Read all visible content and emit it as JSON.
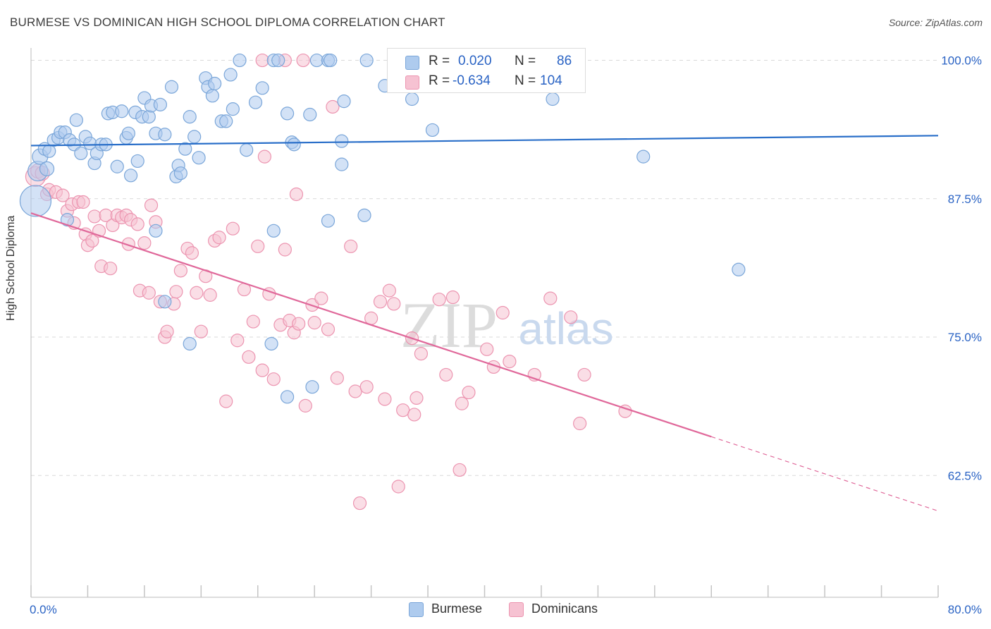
{
  "header": {
    "title": "BURMESE VS DOMINICAN HIGH SCHOOL DIPLOMA CORRELATION CHART",
    "source": "Source: ZipAtlas.com"
  },
  "watermark": {
    "zip": "ZIP",
    "atlas": "atlas"
  },
  "legend": {
    "rows": [
      {
        "r_label": "R =",
        "r_value": "0.020",
        "n_label": "N =",
        "n_value": "86"
      },
      {
        "r_label": "R =",
        "r_value": "-0.634",
        "n_label": "N =",
        "n_value": "104"
      }
    ]
  },
  "bottom_legend": {
    "burmese": "Burmese",
    "dominicans": "Dominicans"
  },
  "colors": {
    "burmese_fill": "#aecbee",
    "burmese_stroke": "#7aa6d9",
    "burmese_line": "#2a6fc9",
    "dominican_fill": "#f6c2d2",
    "dominican_stroke": "#ec94b0",
    "dominican_line": "#e0689a",
    "value_text": "#2a63c4",
    "grid": "#d8d8d8"
  },
  "chart_data": {
    "type": "scatter",
    "ylabel": "High School Diploma",
    "xlabel": "",
    "xlim": [
      0,
      80
    ],
    "ylim": [
      51.5,
      101.5
    ],
    "x_tick_labels": [
      "0.0%",
      "80.0%"
    ],
    "y_ticks": [
      62.5,
      75.0,
      87.5,
      100.0
    ],
    "y_tick_labels": [
      "62.5%",
      "75.0%",
      "87.5%",
      "100.0%"
    ],
    "series": [
      {
        "name": "Burmese",
        "trend": {
          "x": [
            0,
            80
          ],
          "y": [
            92.3,
            93.2
          ],
          "extrapolated_to": null
        },
        "points": [
          [
            0.4,
            87.3,
            22
          ],
          [
            0.6,
            90.0,
            14
          ],
          [
            0.8,
            91.3,
            11
          ],
          [
            1.2,
            92.0,
            9
          ],
          [
            1.4,
            90.2,
            10
          ],
          [
            1.6,
            91.8,
            9
          ],
          [
            2.0,
            92.8,
            9
          ],
          [
            2.4,
            93.0,
            9
          ],
          [
            2.6,
            93.5,
            9
          ],
          [
            3.0,
            93.5,
            9
          ],
          [
            3.4,
            92.8,
            9
          ],
          [
            3.8,
            92.4,
            9
          ],
          [
            4.0,
            94.6,
            9
          ],
          [
            4.4,
            91.6,
            9
          ],
          [
            4.8,
            93.1,
            9
          ],
          [
            5.2,
            92.5,
            9
          ],
          [
            5.6,
            90.7,
            9
          ],
          [
            5.8,
            91.6,
            9
          ],
          [
            6.2,
            92.4,
            9
          ],
          [
            6.6,
            92.4,
            9
          ],
          [
            6.8,
            95.2,
            9
          ],
          [
            7.2,
            95.3,
            9
          ],
          [
            7.6,
            90.4,
            9
          ],
          [
            8.0,
            95.4,
            9
          ],
          [
            8.4,
            93.0,
            9
          ],
          [
            8.6,
            93.4,
            9
          ],
          [
            8.8,
            89.6,
            9
          ],
          [
            9.2,
            95.3,
            9
          ],
          [
            9.4,
            90.9,
            9
          ],
          [
            9.8,
            94.9,
            9
          ],
          [
            10.0,
            96.6,
            9
          ],
          [
            10.4,
            94.9,
            9
          ],
          [
            10.6,
            95.9,
            9
          ],
          [
            11.0,
            93.4,
            9
          ],
          [
            11.4,
            96.0,
            9
          ],
          [
            11.8,
            93.3,
            9
          ],
          [
            12.4,
            97.6,
            9
          ],
          [
            12.8,
            89.5,
            9
          ],
          [
            13.0,
            90.5,
            9
          ],
          [
            13.2,
            89.8,
            9
          ],
          [
            13.6,
            92.0,
            9
          ],
          [
            14.0,
            94.9,
            9
          ],
          [
            14.4,
            93.1,
            9
          ],
          [
            14.8,
            91.2,
            9
          ],
          [
            15.4,
            98.4,
            9
          ],
          [
            15.6,
            97.6,
            9
          ],
          [
            16.0,
            96.8,
            9
          ],
          [
            16.2,
            97.9,
            9
          ],
          [
            16.8,
            94.5,
            9
          ],
          [
            17.2,
            94.5,
            9
          ],
          [
            17.6,
            98.7,
            9
          ],
          [
            17.8,
            95.6,
            9
          ],
          [
            18.4,
            100.0,
            9
          ],
          [
            19.0,
            91.9,
            9
          ],
          [
            19.8,
            96.2,
            9
          ],
          [
            20.4,
            97.5,
            9
          ],
          [
            21.4,
            100.0,
            9
          ],
          [
            21.8,
            100.0,
            9
          ],
          [
            22.6,
            95.2,
            9
          ],
          [
            23.0,
            92.6,
            9
          ],
          [
            23.2,
            92.4,
            9
          ],
          [
            24.6,
            95.1,
            9
          ],
          [
            25.2,
            100.0,
            9
          ],
          [
            26.2,
            100.0,
            9
          ],
          [
            26.4,
            100.0,
            9
          ],
          [
            27.4,
            92.7,
            9
          ],
          [
            27.4,
            90.6,
            9
          ],
          [
            27.6,
            96.3,
            9
          ],
          [
            29.6,
            100.0,
            9
          ],
          [
            31.2,
            97.7,
            9
          ],
          [
            32.0,
            100.0,
            9
          ],
          [
            33.6,
            96.5,
            9
          ],
          [
            35.4,
            93.7,
            9
          ],
          [
            46.0,
            96.5,
            9
          ],
          [
            54.0,
            91.3,
            9
          ],
          [
            62.4,
            81.1,
            9
          ],
          [
            11.8,
            78.2,
            9
          ],
          [
            14.0,
            74.4,
            9
          ],
          [
            21.2,
            74.4,
            9
          ],
          [
            21.4,
            84.6,
            9
          ],
          [
            22.6,
            69.6,
            9
          ],
          [
            24.8,
            70.5,
            9
          ],
          [
            26.2,
            85.5,
            9
          ],
          [
            29.4,
            86.0,
            9
          ],
          [
            3.2,
            85.6,
            9
          ],
          [
            11.0,
            84.6,
            9
          ]
        ]
      },
      {
        "name": "Dominicans",
        "trend": {
          "x": [
            0,
            60
          ],
          "y": [
            86.2,
            66.0
          ],
          "extrapolated_to": [
            80,
            59.3
          ]
        },
        "points": [
          [
            0.4,
            89.5,
            14
          ],
          [
            0.6,
            90.0,
            10
          ],
          [
            1.0,
            89.8,
            10
          ],
          [
            1.4,
            87.9,
            9
          ],
          [
            1.6,
            88.3,
            9
          ],
          [
            2.2,
            88.1,
            9
          ],
          [
            2.8,
            87.8,
            9
          ],
          [
            3.2,
            86.4,
            9
          ],
          [
            3.6,
            87.0,
            9
          ],
          [
            3.8,
            85.3,
            9
          ],
          [
            4.2,
            87.2,
            9
          ],
          [
            4.6,
            87.2,
            9
          ],
          [
            4.8,
            84.3,
            9
          ],
          [
            5.0,
            83.3,
            9
          ],
          [
            5.4,
            83.7,
            9
          ],
          [
            5.6,
            85.9,
            9
          ],
          [
            6.0,
            84.6,
            9
          ],
          [
            6.2,
            81.4,
            9
          ],
          [
            6.6,
            86.0,
            9
          ],
          [
            7.0,
            81.2,
            9
          ],
          [
            7.2,
            85.1,
            9
          ],
          [
            7.6,
            86.0,
            9
          ],
          [
            8.0,
            85.8,
            9
          ],
          [
            8.4,
            86.0,
            9
          ],
          [
            8.6,
            83.4,
            9
          ],
          [
            8.8,
            85.6,
            9
          ],
          [
            9.4,
            85.2,
            9
          ],
          [
            9.6,
            79.2,
            9
          ],
          [
            10.0,
            83.5,
            9
          ],
          [
            10.4,
            79.0,
            9
          ],
          [
            10.6,
            86.9,
            9
          ],
          [
            11.0,
            85.4,
            9
          ],
          [
            11.4,
            78.2,
            9
          ],
          [
            11.8,
            75.0,
            9
          ],
          [
            12.0,
            75.5,
            9
          ],
          [
            12.6,
            78.0,
            9
          ],
          [
            12.8,
            79.1,
            9
          ],
          [
            13.2,
            81.0,
            9
          ],
          [
            13.8,
            83.0,
            9
          ],
          [
            14.2,
            82.6,
            9
          ],
          [
            14.6,
            79.0,
            9
          ],
          [
            15.0,
            75.5,
            9
          ],
          [
            15.4,
            80.5,
            9
          ],
          [
            15.8,
            78.8,
            9
          ],
          [
            16.2,
            83.7,
            9
          ],
          [
            16.6,
            84.0,
            9
          ],
          [
            17.2,
            69.2,
            9
          ],
          [
            17.8,
            84.8,
            9
          ],
          [
            18.2,
            74.7,
            9
          ],
          [
            18.8,
            79.3,
            9
          ],
          [
            19.2,
            73.2,
            9
          ],
          [
            19.6,
            76.4,
            9
          ],
          [
            20.0,
            83.2,
            9
          ],
          [
            20.4,
            72.0,
            9
          ],
          [
            20.6,
            91.3,
            9
          ],
          [
            21.0,
            78.9,
            9
          ],
          [
            21.4,
            71.2,
            9
          ],
          [
            22.0,
            76.1,
            9
          ],
          [
            22.4,
            82.9,
            9
          ],
          [
            22.8,
            76.5,
            9
          ],
          [
            23.2,
            75.4,
            9
          ],
          [
            23.4,
            87.9,
            9
          ],
          [
            23.6,
            76.2,
            9
          ],
          [
            24.2,
            68.8,
            9
          ],
          [
            24.8,
            77.9,
            9
          ],
          [
            25.0,
            76.3,
            9
          ],
          [
            25.6,
            78.5,
            9
          ],
          [
            26.2,
            75.7,
            9
          ],
          [
            26.6,
            95.8,
            9
          ],
          [
            27.0,
            71.3,
            9
          ],
          [
            28.2,
            83.2,
            9
          ],
          [
            28.6,
            70.1,
            9
          ],
          [
            29.0,
            60.0,
            9
          ],
          [
            29.6,
            70.5,
            9
          ],
          [
            30.0,
            76.7,
            9
          ],
          [
            30.8,
            78.2,
            9
          ],
          [
            31.2,
            69.4,
            9
          ],
          [
            31.6,
            79.2,
            9
          ],
          [
            32.0,
            78.0,
            9
          ],
          [
            32.4,
            61.5,
            9
          ],
          [
            32.8,
            68.4,
            9
          ],
          [
            33.6,
            74.9,
            9
          ],
          [
            33.8,
            68.0,
            9
          ],
          [
            34.0,
            69.5,
            9
          ],
          [
            34.4,
            73.5,
            9
          ],
          [
            36.0,
            78.4,
            9
          ],
          [
            36.6,
            71.6,
            9
          ],
          [
            37.2,
            78.6,
            9
          ],
          [
            37.8,
            63.0,
            9
          ],
          [
            38.0,
            69.0,
            9
          ],
          [
            38.6,
            70.0,
            9
          ],
          [
            40.2,
            73.9,
            9
          ],
          [
            40.8,
            72.3,
            9
          ],
          [
            41.6,
            77.2,
            9
          ],
          [
            42.2,
            72.8,
            9
          ],
          [
            44.4,
            71.6,
            9
          ],
          [
            45.8,
            78.5,
            9
          ],
          [
            47.6,
            76.8,
            9
          ],
          [
            48.4,
            67.2,
            9
          ],
          [
            48.8,
            71.6,
            9
          ],
          [
            52.4,
            68.3,
            9
          ],
          [
            20.4,
            100.0,
            9
          ],
          [
            22.4,
            100.0,
            9
          ],
          [
            24.0,
            100.0,
            9
          ]
        ]
      }
    ]
  }
}
